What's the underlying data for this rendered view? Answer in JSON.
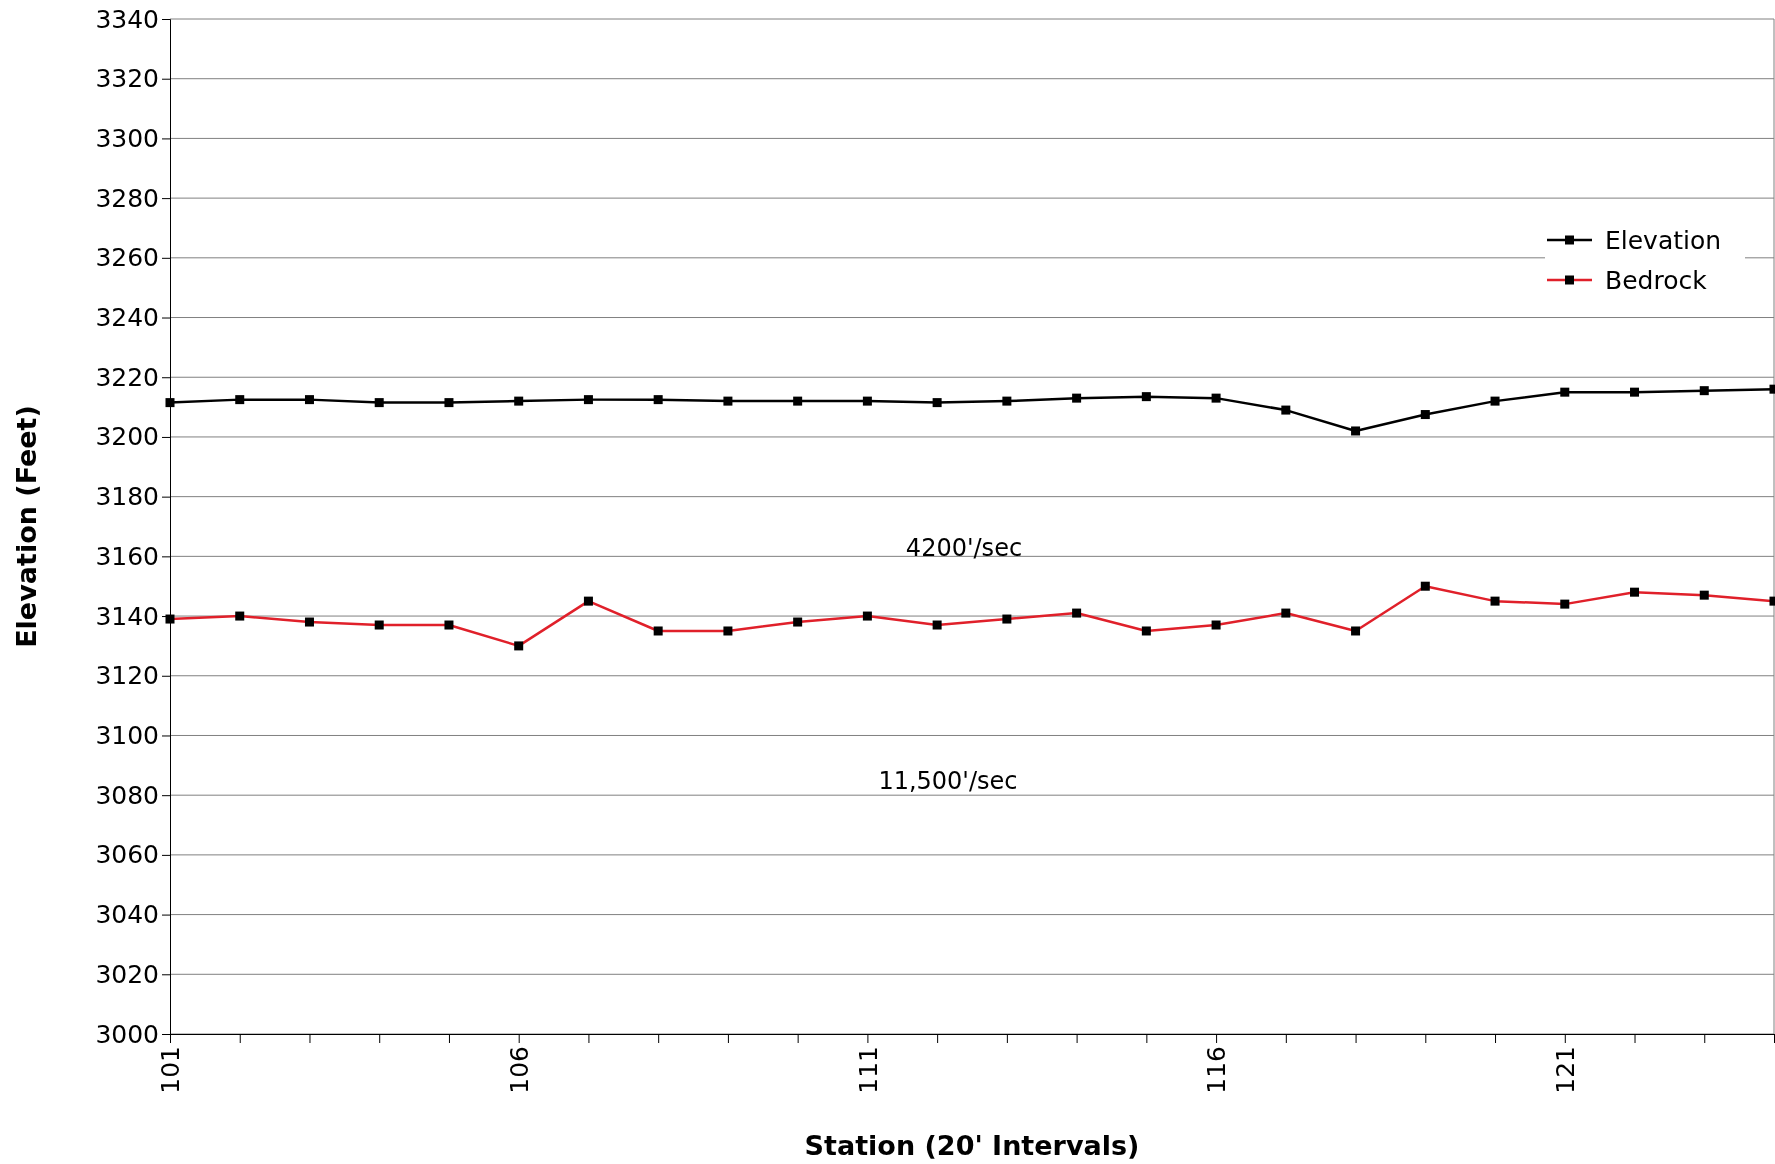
{
  "chart_data": {
    "type": "line",
    "xlabel": "Station (20' Intervals)",
    "ylabel": "Elevation (Feet)",
    "categories": [
      "101",
      null,
      null,
      null,
      null,
      "106",
      null,
      null,
      null,
      null,
      "111",
      null,
      null,
      null,
      null,
      "116",
      null,
      null,
      null,
      null,
      "121",
      null,
      null,
      null
    ],
    "series": [
      {
        "name": "Elevation",
        "color": "#000000",
        "values": [
          3211.5,
          3212.5,
          3212.5,
          3211.5,
          3211.5,
          3212,
          3212.5,
          3212.5,
          3212,
          3212,
          3212,
          3211.5,
          3212,
          3213,
          3213.5,
          3213,
          3209,
          3202,
          3207.5,
          3212,
          3215,
          3215,
          3215.5,
          3216
        ]
      },
      {
        "name": "Bedrock",
        "color": "#e0202a",
        "values": [
          3139,
          3140,
          3138,
          3137,
          3137,
          3130,
          3145,
          3135,
          3135,
          3138,
          3140,
          3137,
          3139,
          3141,
          3135,
          3137,
          3141,
          3135,
          3150,
          3145,
          3144,
          3148,
          3147,
          3145
        ]
      }
    ],
    "ylim": [
      3000,
      3340
    ],
    "yticks": [
      3000,
      3020,
      3040,
      3060,
      3080,
      3100,
      3120,
      3140,
      3160,
      3180,
      3200,
      3220,
      3240,
      3260,
      3280,
      3300,
      3320,
      3340
    ],
    "grid": "y",
    "legend": "top right",
    "marker": "square",
    "line_style": "solid",
    "annotations": [
      "4200'/sec",
      "11,500'/sec"
    ]
  }
}
